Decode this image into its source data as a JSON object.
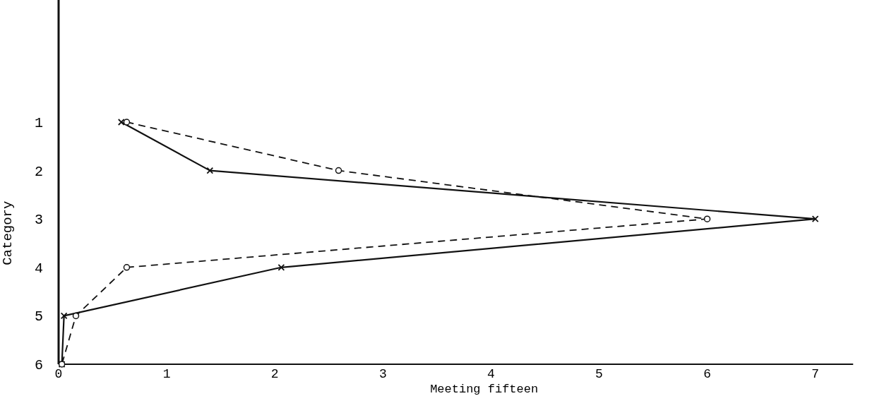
{
  "chart_data": {
    "type": "line",
    "orientation": "horizontal",
    "xlabel": "Meeting fifteen",
    "ylabel": "Category",
    "categories": [
      "1",
      "2",
      "3",
      "4",
      "5",
      "6"
    ],
    "xlim": [
      0,
      7.35
    ],
    "xticks": [
      0,
      1,
      2,
      3,
      4,
      5,
      6,
      7
    ],
    "grid": false,
    "series": [
      {
        "color": "#111111",
        "marker": "cross",
        "line_style": "solid",
        "values": [
          0.58,
          1.4,
          7.0,
          2.06,
          0.05,
          0.03
        ]
      },
      {
        "color": "#111111",
        "marker": "circle",
        "line_style": "dashed",
        "values": [
          0.63,
          2.59,
          6.0,
          0.63,
          0.16,
          0.03
        ]
      }
    ]
  }
}
